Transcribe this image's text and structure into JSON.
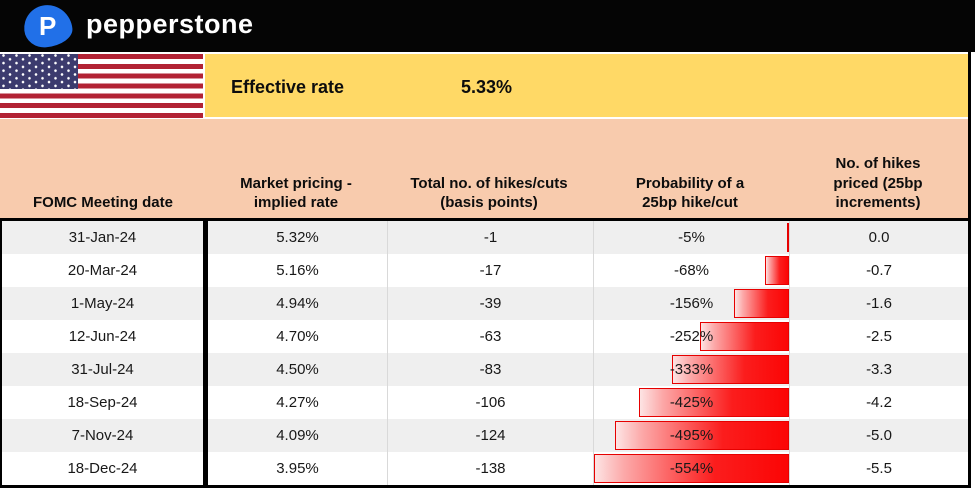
{
  "brand": {
    "wordmark": "pepperstone",
    "logo_letter": "P",
    "logo_color": "#2170e8"
  },
  "effective_rate": {
    "label": "Effective rate",
    "value": "5.33%",
    "band_color": "#ffd966"
  },
  "flag": {
    "name": "united-states",
    "red": "#b22234",
    "blue": "#3c3b6e"
  },
  "table": {
    "header_color": "#f8cbad",
    "band_color": "#efefef",
    "bar_color": "#ff0000",
    "bar_scale_abs_max": 554,
    "columns": [
      "FOMC Meeting date",
      "Market pricing -\nimplied rate",
      "Total no. of hikes/cuts\n(basis points)",
      "Probability of a\n25bp hike/cut",
      "No. of hikes\npriced (25bp\nincrements)"
    ],
    "rows": [
      {
        "date": "31-Jan-24",
        "implied_rate": "5.32%",
        "total_bp": "-1",
        "probability": "-5%",
        "prob_pct": -5,
        "hikes_priced": "0.0"
      },
      {
        "date": "20-Mar-24",
        "implied_rate": "5.16%",
        "total_bp": "-17",
        "probability": "-68%",
        "prob_pct": -68,
        "hikes_priced": "-0.7"
      },
      {
        "date": "1-May-24",
        "implied_rate": "4.94%",
        "total_bp": "-39",
        "probability": "-156%",
        "prob_pct": -156,
        "hikes_priced": "-1.6"
      },
      {
        "date": "12-Jun-24",
        "implied_rate": "4.70%",
        "total_bp": "-63",
        "probability": "-252%",
        "prob_pct": -252,
        "hikes_priced": "-2.5"
      },
      {
        "date": "31-Jul-24",
        "implied_rate": "4.50%",
        "total_bp": "-83",
        "probability": "-333%",
        "prob_pct": -333,
        "hikes_priced": "-3.3"
      },
      {
        "date": "18-Sep-24",
        "implied_rate": "4.27%",
        "total_bp": "-106",
        "probability": "-425%",
        "prob_pct": -425,
        "hikes_priced": "-4.2"
      },
      {
        "date": "7-Nov-24",
        "implied_rate": "4.09%",
        "total_bp": "-124",
        "probability": "-495%",
        "prob_pct": -495,
        "hikes_priced": "-5.0"
      },
      {
        "date": "18-Dec-24",
        "implied_rate": "3.95%",
        "total_bp": "-138",
        "probability": "-554%",
        "prob_pct": -554,
        "hikes_priced": "-5.5"
      }
    ]
  },
  "chart_data": {
    "type": "table",
    "columns": [
      "FOMC Meeting date",
      "Market pricing - implied rate",
      "Total no. of hikes/cuts (basis points)",
      "Probability of a 25bp hike/cut",
      "No. of hikes priced (25bp increments)"
    ],
    "rows": [
      [
        "31-Jan-24",
        "5.32%",
        -1,
        "-5%",
        0.0
      ],
      [
        "20-Mar-24",
        "5.16%",
        -17,
        "-68%",
        -0.7
      ],
      [
        "1-May-24",
        "4.94%",
        -39,
        "-156%",
        -1.6
      ],
      [
        "12-Jun-24",
        "4.70%",
        -63,
        "-252%",
        -2.5
      ],
      [
        "31-Jul-24",
        "4.50%",
        -83,
        "-333%",
        -3.3
      ],
      [
        "18-Sep-24",
        "4.27%",
        -106,
        "-425%",
        -4.2
      ],
      [
        "7-Nov-24",
        "4.09%",
        -124,
        "-495%",
        -5.0
      ],
      [
        "18-Dec-24",
        "3.95%",
        -138,
        "-554%",
        -5.5
      ]
    ],
    "bar_column": "Probability of a 25bp hike/cut",
    "bar_values_pct": [
      -5,
      -68,
      -156,
      -252,
      -333,
      -425,
      -495,
      -554
    ],
    "bar_axis_side": "right",
    "annotations": {
      "effective_rate": "5.33%"
    }
  }
}
